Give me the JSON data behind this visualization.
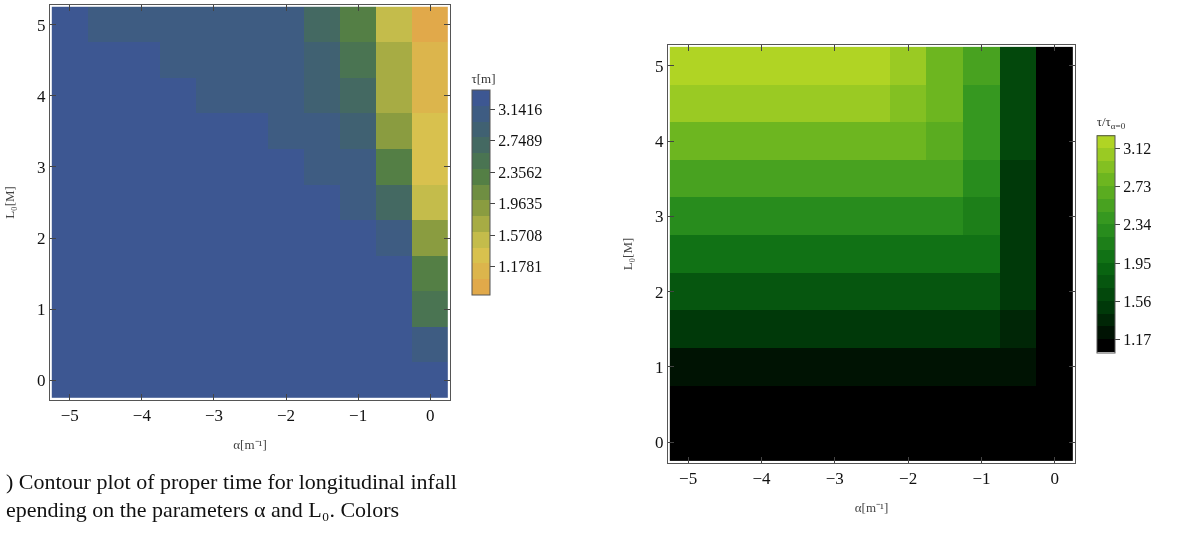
{
  "chart_data": [
    {
      "type": "heatmap",
      "xlabel": "α[m⁻¹]",
      "ylabel": "L₀[M]",
      "clabel": "τ[m]",
      "categories": [
        "−5",
        null,
        "−4",
        null,
        "−3",
        null,
        "−2",
        null,
        "−1",
        null,
        "0"
      ],
      "y_categories": [
        "5",
        null,
        "4",
        null,
        "3",
        null,
        "2",
        null,
        "1",
        null,
        "0"
      ],
      "cells": [
        [
          3.2,
          3.18,
          3.15,
          3.13,
          3.1,
          3.06,
          3.0,
          2.78,
          2.35,
          1.5,
          0.9
        ],
        [
          3.22,
          3.21,
          3.19,
          3.17,
          3.14,
          3.11,
          3.06,
          2.9,
          2.55,
          1.65,
          1.02
        ],
        [
          3.24,
          3.23,
          3.21,
          3.2,
          3.18,
          3.15,
          3.12,
          2.97,
          2.75,
          1.8,
          1.14
        ],
        [
          3.25,
          3.24,
          3.23,
          3.22,
          3.21,
          3.19,
          3.17,
          3.05,
          2.9,
          2.0,
          1.25
        ],
        [
          3.26,
          3.25,
          3.24,
          3.23,
          3.22,
          3.21,
          3.2,
          3.13,
          3.0,
          2.3,
          1.41
        ],
        [
          3.26,
          3.26,
          3.25,
          3.24,
          3.23,
          3.22,
          3.21,
          3.19,
          3.12,
          2.7,
          1.6
        ],
        [
          3.27,
          3.26,
          3.26,
          3.25,
          3.24,
          3.23,
          3.23,
          3.22,
          3.2,
          3.05,
          1.9
        ],
        [
          3.27,
          3.27,
          3.26,
          3.26,
          3.25,
          3.25,
          3.25,
          3.24,
          3.24,
          3.2,
          2.25
        ],
        [
          3.28,
          3.27,
          3.27,
          3.27,
          3.26,
          3.26,
          3.26,
          3.26,
          3.26,
          3.25,
          2.59
        ],
        [
          3.28,
          3.28,
          3.28,
          3.27,
          3.27,
          3.27,
          3.27,
          3.27,
          3.27,
          3.27,
          3.05
        ],
        [
          3.28,
          3.28,
          3.28,
          3.28,
          3.28,
          3.28,
          3.28,
          3.28,
          3.28,
          3.28,
          3.25
        ]
      ],
      "clim": [
        0.82,
        3.38
      ],
      "cticks": [
        1.1781,
        1.5708,
        1.9635,
        2.3562,
        2.7489,
        3.1416
      ],
      "colors": [
        "#e1a94a",
        "#d6c64f",
        "#8f9f3f",
        "#4f7c45",
        "#40636c",
        "#3d5792"
      ],
      "annotations": [
        ") Contour plot of proper time for longitudinal infall\nepending on the parameters α and L₀. Colors"
      ]
    },
    {
      "type": "heatmap",
      "xlabel": "α[m⁻¹]",
      "ylabel": "L₀[M]",
      "clabel": "τ/τ$_{α=0}$",
      "categories": [
        "−5",
        null,
        "−4",
        null,
        "−3",
        null,
        "−2",
        null,
        "−1",
        null,
        "0"
      ],
      "y_categories": [
        "5",
        null,
        "4",
        null,
        "3",
        null,
        "2",
        null,
        "1",
        null,
        "0"
      ],
      "cells": [
        [
          3.22,
          3.22,
          3.2,
          3.18,
          3.15,
          3.12,
          3.03,
          2.85,
          2.5,
          1.6,
          1.1
        ],
        [
          3.06,
          3.06,
          3.06,
          3.05,
          3.04,
          3.02,
          2.97,
          2.83,
          2.45,
          1.58,
          1.1
        ],
        [
          2.79,
          2.79,
          2.79,
          2.79,
          2.78,
          2.77,
          2.76,
          2.7,
          2.4,
          1.56,
          1.1
        ],
        [
          2.52,
          2.52,
          2.52,
          2.52,
          2.52,
          2.51,
          2.5,
          2.48,
          2.33,
          1.55,
          1.1
        ],
        [
          2.26,
          2.26,
          2.26,
          2.26,
          2.26,
          2.25,
          2.25,
          2.24,
          2.2,
          1.54,
          1.1
        ],
        [
          2.0,
          2.0,
          2.0,
          2.0,
          2.0,
          2.0,
          2.0,
          1.99,
          1.98,
          1.52,
          1.1
        ],
        [
          1.75,
          1.75,
          1.75,
          1.75,
          1.75,
          1.75,
          1.75,
          1.75,
          1.74,
          1.5,
          1.1
        ],
        [
          1.47,
          1.47,
          1.47,
          1.47,
          1.47,
          1.47,
          1.47,
          1.47,
          1.46,
          1.4,
          1.1
        ],
        [
          1.24,
          1.24,
          1.24,
          1.24,
          1.24,
          1.24,
          1.24,
          1.24,
          1.23,
          1.22,
          1.1
        ],
        [
          1.1,
          1.1,
          1.1,
          1.1,
          1.1,
          1.1,
          1.1,
          1.1,
          1.1,
          1.1,
          1.1
        ],
        [
          1.1,
          1.1,
          1.1,
          1.1,
          1.1,
          1.1,
          1.1,
          1.1,
          1.1,
          1.1,
          1.1
        ]
      ],
      "clim": [
        1.04,
        3.25
      ],
      "cticks": [
        1.17,
        1.56,
        1.95,
        2.34,
        2.73,
        3.12
      ],
      "colors": [
        "#000000",
        "#003d0a",
        "#0a6a12",
        "#2f9420",
        "#68b420",
        "#b0d424"
      ]
    }
  ]
}
